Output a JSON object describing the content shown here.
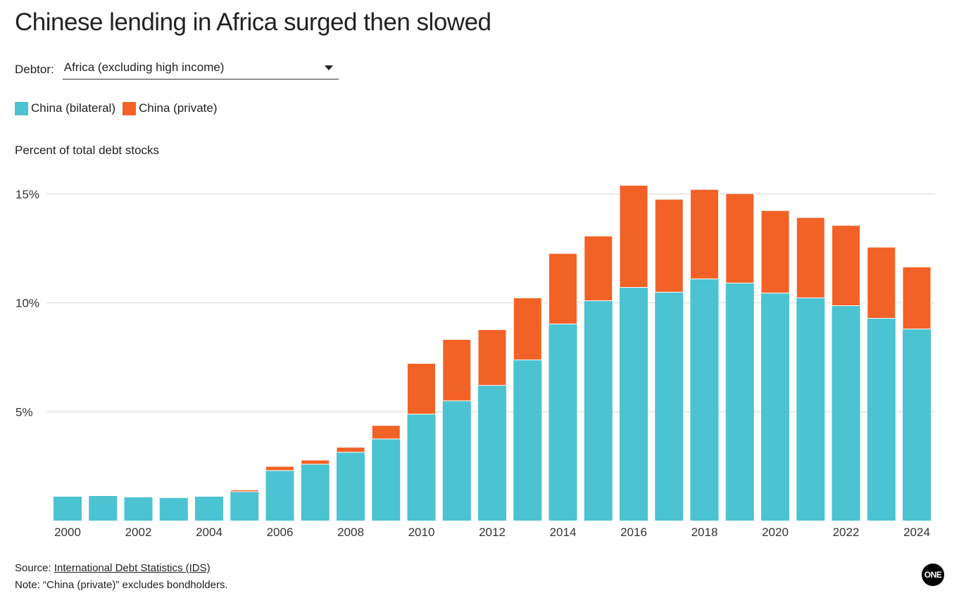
{
  "title": "Chinese lending in Africa surged then slowed",
  "debtor": {
    "label": "Debtor:",
    "selected": "Africa (excluding high income)"
  },
  "footer": {
    "source_prefix": "Source: ",
    "source_link": "International Debt Statistics (IDS)",
    "note": "Note: “China (private)” excludes bondholders."
  },
  "logo": "ONE",
  "chart_data": {
    "type": "bar",
    "stacked": true,
    "title": "Chinese lending in Africa surged then slowed",
    "ylabel": "Percent of total debt stocks",
    "xlabel": "",
    "ylim": [
      0,
      15.5
    ],
    "yticks": [
      5,
      10,
      15
    ],
    "ytick_labels": [
      "5%",
      "10%",
      "15%"
    ],
    "grid": true,
    "legend_position": "top-left",
    "categories": [
      "2000",
      "2001",
      "2002",
      "2003",
      "2004",
      "2005",
      "2006",
      "2007",
      "2008",
      "2009",
      "2010",
      "2011",
      "2012",
      "2013",
      "2014",
      "2015",
      "2016",
      "2017",
      "2018",
      "2019",
      "2020",
      "2021",
      "2022",
      "2023",
      "2024"
    ],
    "xtick_labels": [
      "2000",
      "2002",
      "2004",
      "2006",
      "2008",
      "2010",
      "2012",
      "2014",
      "2016",
      "2018",
      "2020",
      "2022",
      "2024"
    ],
    "series": [
      {
        "name": "China (bilateral)",
        "color": "#4bc3d0",
        "values": [
          1.1,
          1.13,
          1.07,
          1.04,
          1.1,
          1.33,
          2.3,
          2.59,
          3.14,
          3.75,
          4.89,
          5.5,
          6.21,
          7.38,
          9.03,
          10.1,
          10.71,
          10.49,
          11.1,
          10.91,
          10.45,
          10.23,
          9.87,
          9.29,
          8.8
        ]
      },
      {
        "name": "China (private)",
        "color": "#f26227",
        "values": [
          0,
          0,
          0,
          0,
          0,
          0.08,
          0.19,
          0.19,
          0.23,
          0.62,
          2.33,
          2.82,
          2.56,
          2.85,
          3.24,
          2.97,
          4.69,
          4.27,
          4.11,
          4.11,
          3.79,
          3.69,
          3.69,
          3.27,
          2.85
        ]
      }
    ]
  }
}
